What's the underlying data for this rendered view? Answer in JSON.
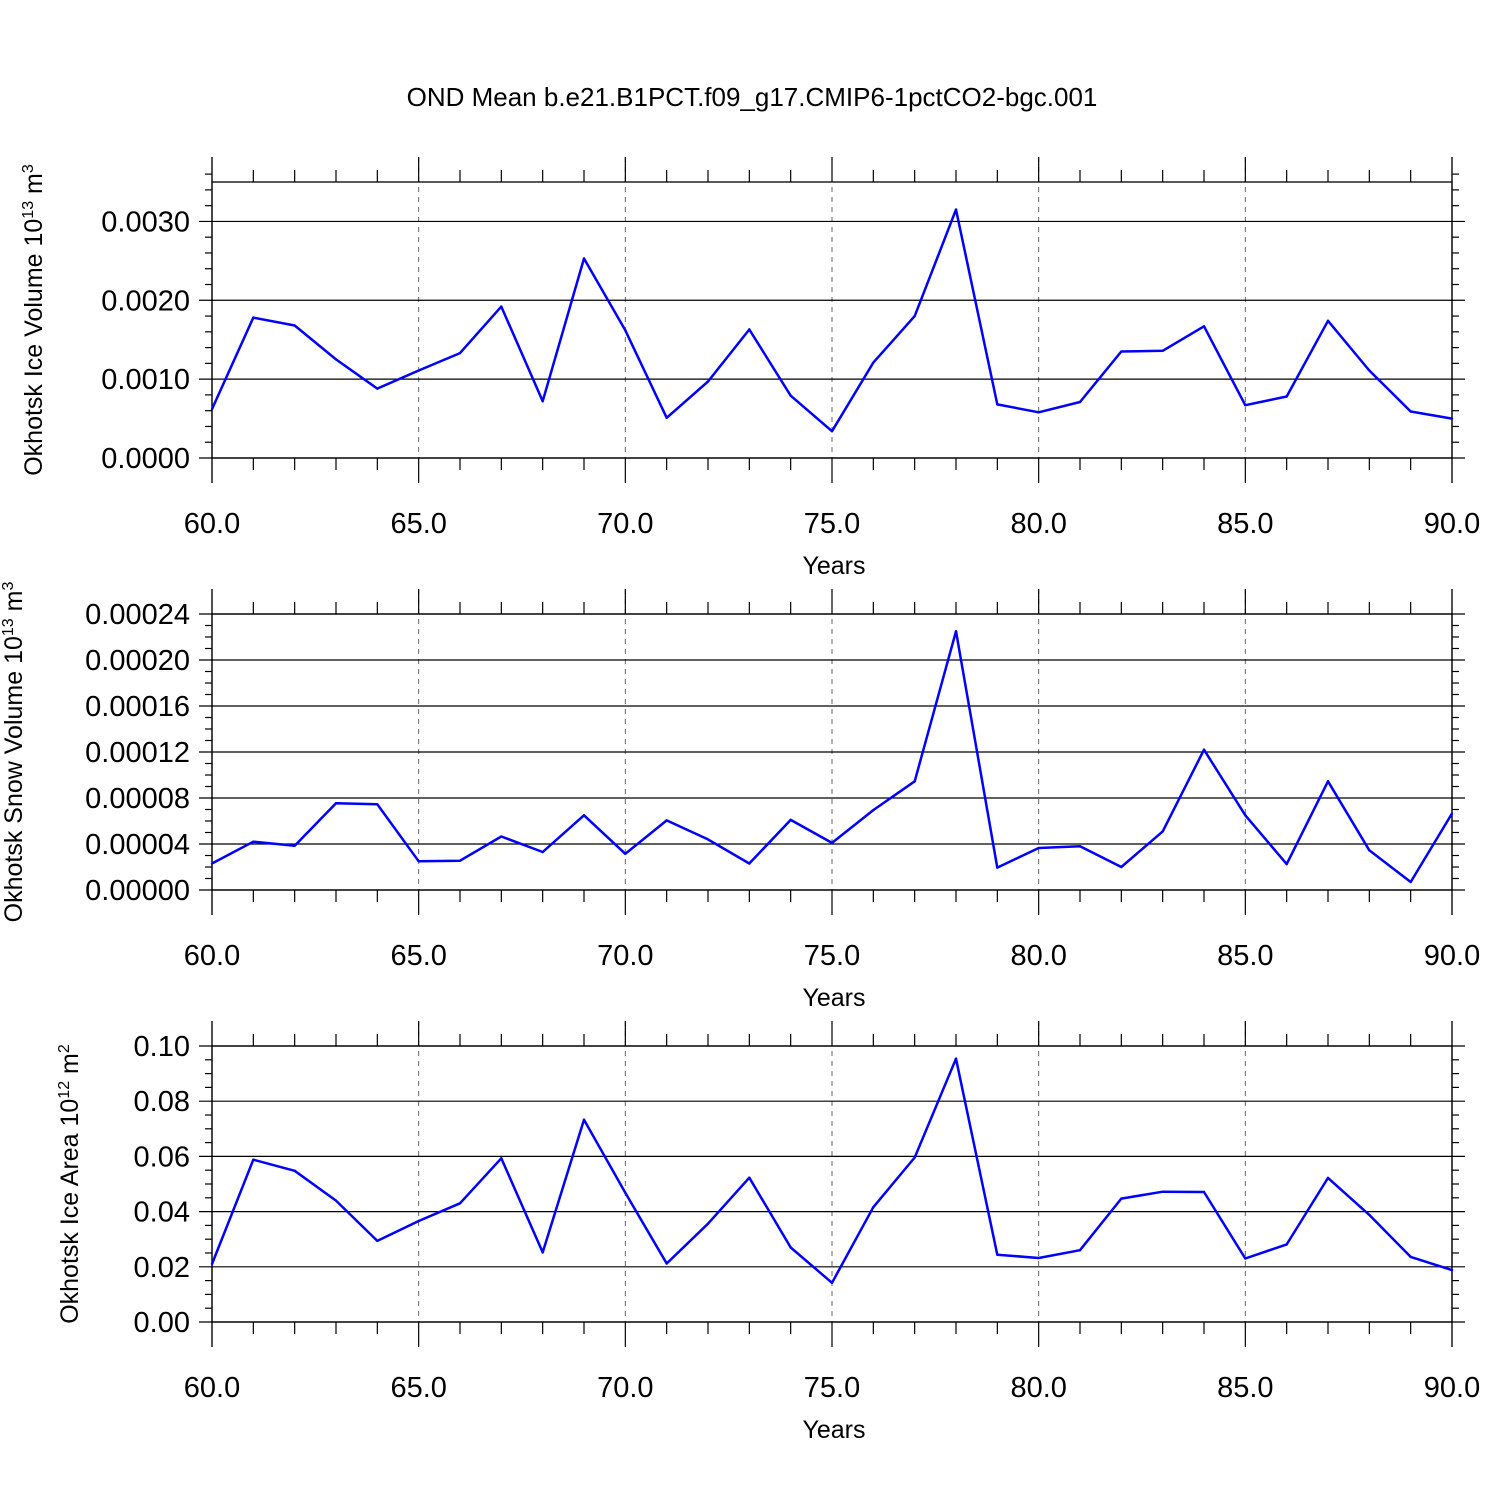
{
  "figure": {
    "title": "OND Mean b.e21.B1PCT.f09_g17.CMIP6-1pctCO2-bgc.001"
  },
  "chart_data": [
    {
      "type": "line",
      "title": "",
      "xlabel": "Years",
      "ylabel": "Okhotsk Ice Volume 10",
      "ylabel_sup": "13",
      "ylabel_unit": " m",
      "ylabel_unit_sup": "3",
      "xlim": [
        60,
        90
      ],
      "ylim": [
        0,
        0.0035
      ],
      "x_ticks": [
        60,
        65,
        70,
        75,
        80,
        85,
        90
      ],
      "x_tick_labels": [
        "60.0",
        "65.0",
        "70.0",
        "75.0",
        "80.0",
        "85.0",
        "90.0"
      ],
      "y_ticks": [
        0,
        0.001,
        0.002,
        0.003
      ],
      "y_tick_labels": [
        "0.0000",
        "0.0010",
        "0.0020",
        "0.0030"
      ],
      "y_minor_step": 0.0002,
      "x_minor_step": 1,
      "grid": "vertical dashed at major x ticks",
      "line_color": "#0000ff",
      "x": [
        60,
        61,
        62,
        63,
        64,
        65,
        66,
        67,
        68,
        69,
        70,
        71,
        72,
        73,
        74,
        75,
        76,
        77,
        78,
        79,
        80,
        81,
        82,
        83,
        84,
        85,
        86,
        87,
        88,
        89,
        90
      ],
      "values": [
        0.00062,
        0.00178,
        0.00168,
        0.00125,
        0.00088,
        0.00111,
        0.00133,
        0.00192,
        0.00072,
        0.00253,
        0.00162,
        0.00051,
        0.00097,
        0.00163,
        0.00079,
        0.00034,
        0.00121,
        0.0018,
        0.00315,
        0.00068,
        0.00058,
        0.00071,
        0.00135,
        0.00136,
        0.00167,
        0.00067,
        0.00078,
        0.00174,
        0.00111,
        0.00059,
        0.0005
      ]
    },
    {
      "type": "line",
      "title": "",
      "xlabel": "Years",
      "ylabel": "Okhotsk Snow Volume 10",
      "ylabel_sup": "13",
      "ylabel_unit": " m",
      "ylabel_unit_sup": "3",
      "xlim": [
        60,
        90
      ],
      "ylim": [
        0,
        0.00024
      ],
      "x_ticks": [
        60,
        65,
        70,
        75,
        80,
        85,
        90
      ],
      "x_tick_labels": [
        "60.0",
        "65.0",
        "70.0",
        "75.0",
        "80.0",
        "85.0",
        "90.0"
      ],
      "y_ticks": [
        0,
        4e-05,
        8e-05,
        0.00012,
        0.00016,
        0.0002,
        0.00024
      ],
      "y_tick_labels": [
        "0.00000",
        "0.00004",
        "0.00008",
        "0.00012",
        "0.00016",
        "0.00020",
        "0.00024"
      ],
      "y_minor_step": 1e-05,
      "x_minor_step": 1,
      "grid": "vertical dashed at major x ticks",
      "line_color": "#0000ff",
      "x": [
        60,
        61,
        62,
        63,
        64,
        65,
        66,
        67,
        68,
        69,
        70,
        71,
        72,
        73,
        74,
        75,
        76,
        77,
        78,
        79,
        80,
        81,
        82,
        83,
        84,
        85,
        86,
        87,
        88,
        89,
        90
      ],
      "values": [
        2.3e-05,
        4.2e-05,
        3.85e-05,
        7.55e-05,
        7.45e-05,
        2.5e-05,
        2.55e-05,
        4.65e-05,
        3.3e-05,
        6.5e-05,
        3.15e-05,
        6.05e-05,
        4.4e-05,
        2.3e-05,
        6.1e-05,
        4.1e-05,
        6.95e-05,
        9.45e-05,
        0.000225,
        1.95e-05,
        3.65e-05,
        3.8e-05,
        2e-05,
        5.1e-05,
        0.000122,
        6.5e-05,
        2.25e-05,
        9.45e-05,
        3.45e-05,
        7e-06,
        6.65e-05
      ]
    },
    {
      "type": "line",
      "title": "",
      "xlabel": "Years",
      "ylabel": "Okhotsk Ice Area 10",
      "ylabel_sup": "12",
      "ylabel_unit": " m",
      "ylabel_unit_sup": "2",
      "xlim": [
        60,
        90
      ],
      "ylim": [
        0,
        0.1
      ],
      "x_ticks": [
        60,
        65,
        70,
        75,
        80,
        85,
        90
      ],
      "x_tick_labels": [
        "60.0",
        "65.0",
        "70.0",
        "75.0",
        "80.0",
        "85.0",
        "90.0"
      ],
      "y_ticks": [
        0,
        0.02,
        0.04,
        0.06,
        0.08,
        0.1
      ],
      "y_tick_labels": [
        "0.00",
        "0.02",
        "0.04",
        "0.06",
        "0.08",
        "0.10"
      ],
      "y_minor_step": 0.005,
      "x_minor_step": 1,
      "grid": "vertical dashed at major x ticks",
      "line_color": "#0000ff",
      "x": [
        60,
        61,
        62,
        63,
        64,
        65,
        66,
        67,
        68,
        69,
        70,
        71,
        72,
        73,
        74,
        75,
        76,
        77,
        78,
        79,
        80,
        81,
        82,
        83,
        84,
        85,
        86,
        87,
        88,
        89,
        90
      ],
      "values": [
        0.021,
        0.0588,
        0.0548,
        0.044,
        0.0294,
        0.0366,
        0.043,
        0.0593,
        0.0252,
        0.0733,
        0.0468,
        0.0212,
        0.0356,
        0.0523,
        0.027,
        0.0142,
        0.0416,
        0.0596,
        0.0954,
        0.0244,
        0.0232,
        0.026,
        0.0447,
        0.0472,
        0.0471,
        0.023,
        0.0281,
        0.0522,
        0.0388,
        0.0236,
        0.0188
      ]
    }
  ]
}
